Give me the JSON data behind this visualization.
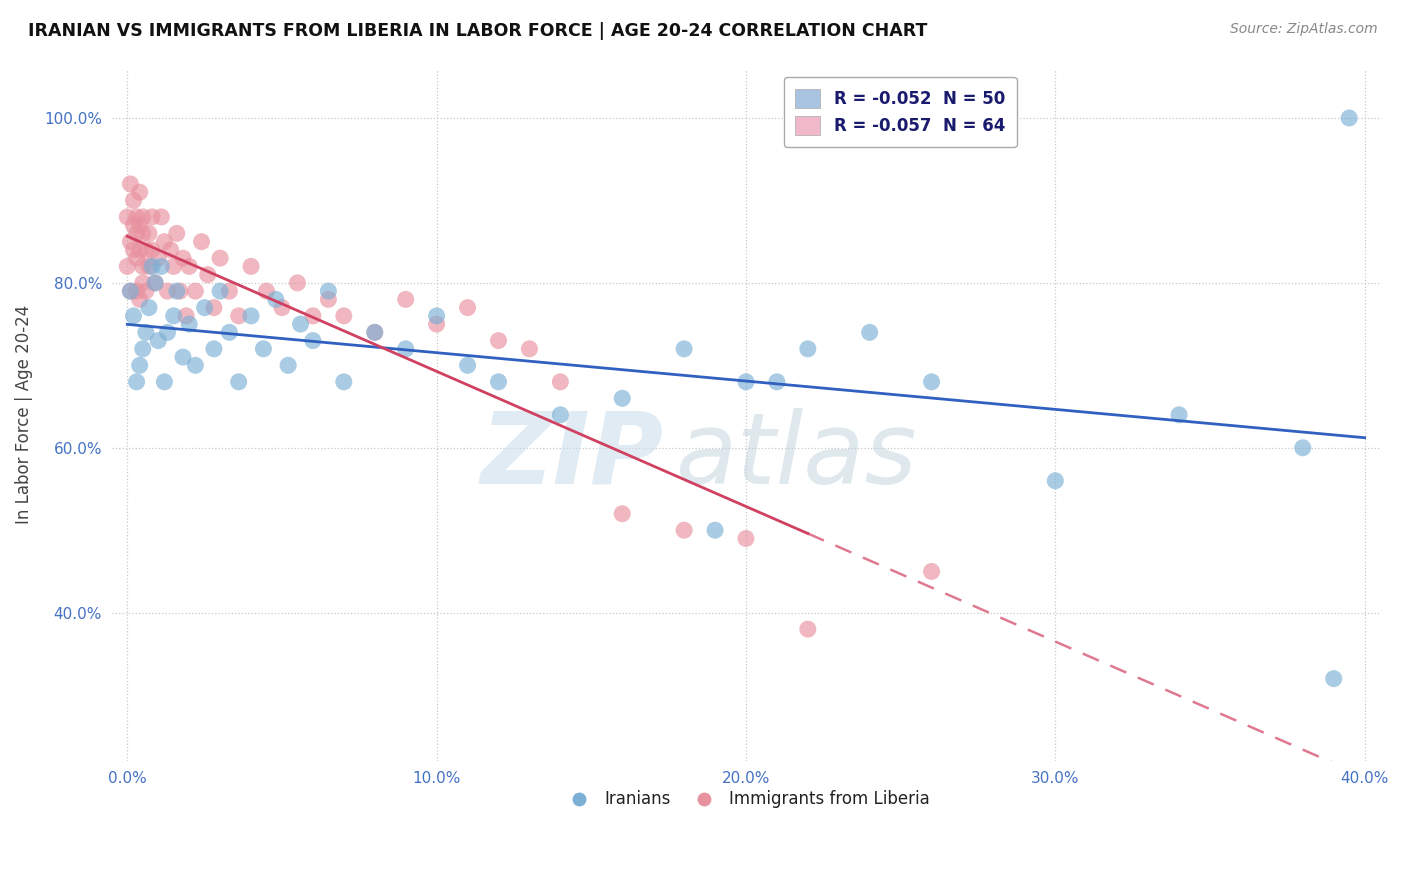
{
  "title": "IRANIAN VS IMMIGRANTS FROM LIBERIA IN LABOR FORCE | AGE 20-24 CORRELATION CHART",
  "source": "Source: ZipAtlas.com",
  "ylabel": "In Labor Force | Age 20-24",
  "xlim": [
    -0.005,
    0.405
  ],
  "ylim": [
    0.22,
    1.06
  ],
  "xticks": [
    0.0,
    0.1,
    0.2,
    0.3,
    0.4
  ],
  "yticks": [
    0.4,
    0.6,
    0.8,
    1.0
  ],
  "ytick_labels": [
    "40.0%",
    "60.0%",
    "80.0%",
    "100.0%"
  ],
  "xtick_labels": [
    "0.0%",
    "10.0%",
    "20.0%",
    "30.0%",
    "40.0%"
  ],
  "iranians_color": "#7bafd4",
  "liberia_color": "#e8919f",
  "iranians_trend_color": "#3060c0",
  "liberia_trend_color": "#d04060",
  "iranians_x": [
    0.001,
    0.005,
    0.008,
    0.002,
    0.003,
    0.006,
    0.009,
    0.004,
    0.007,
    0.01,
    0.012,
    0.015,
    0.018,
    0.011,
    0.013,
    0.016,
    0.02,
    0.022,
    0.025,
    0.028,
    0.03,
    0.033,
    0.036,
    0.04,
    0.044,
    0.048,
    0.052,
    0.056,
    0.06,
    0.065,
    0.07,
    0.08,
    0.09,
    0.1,
    0.11,
    0.12,
    0.14,
    0.16,
    0.18,
    0.2,
    0.22,
    0.24,
    0.26,
    0.3,
    0.34,
    0.38,
    0.19,
    0.21,
    0.39,
    0.395
  ],
  "iranians_y": [
    0.79,
    0.72,
    0.82,
    0.76,
    0.68,
    0.74,
    0.8,
    0.7,
    0.77,
    0.73,
    0.68,
    0.76,
    0.71,
    0.82,
    0.74,
    0.79,
    0.75,
    0.7,
    0.77,
    0.72,
    0.79,
    0.74,
    0.68,
    0.76,
    0.72,
    0.78,
    0.7,
    0.75,
    0.73,
    0.79,
    0.68,
    0.74,
    0.72,
    0.76,
    0.7,
    0.68,
    0.64,
    0.66,
    0.72,
    0.68,
    0.72,
    0.74,
    0.68,
    0.56,
    0.64,
    0.6,
    0.5,
    0.68,
    0.32,
    1.0
  ],
  "liberia_x": [
    0.0,
    0.0,
    0.001,
    0.001,
    0.001,
    0.002,
    0.002,
    0.002,
    0.003,
    0.003,
    0.003,
    0.003,
    0.004,
    0.004,
    0.004,
    0.004,
    0.005,
    0.005,
    0.005,
    0.005,
    0.006,
    0.006,
    0.007,
    0.007,
    0.008,
    0.008,
    0.009,
    0.01,
    0.011,
    0.012,
    0.013,
    0.014,
    0.015,
    0.016,
    0.017,
    0.018,
    0.019,
    0.02,
    0.022,
    0.024,
    0.026,
    0.028,
    0.03,
    0.033,
    0.036,
    0.04,
    0.045,
    0.05,
    0.055,
    0.06,
    0.065,
    0.07,
    0.08,
    0.09,
    0.1,
    0.11,
    0.12,
    0.13,
    0.14,
    0.16,
    0.18,
    0.2,
    0.22,
    0.26
  ],
  "liberia_y": [
    0.82,
    0.88,
    0.85,
    0.92,
    0.79,
    0.87,
    0.9,
    0.84,
    0.88,
    0.83,
    0.79,
    0.86,
    0.91,
    0.84,
    0.78,
    0.87,
    0.82,
    0.88,
    0.8,
    0.86,
    0.84,
    0.79,
    0.86,
    0.82,
    0.88,
    0.84,
    0.8,
    0.83,
    0.88,
    0.85,
    0.79,
    0.84,
    0.82,
    0.86,
    0.79,
    0.83,
    0.76,
    0.82,
    0.79,
    0.85,
    0.81,
    0.77,
    0.83,
    0.79,
    0.76,
    0.82,
    0.79,
    0.77,
    0.8,
    0.76,
    0.78,
    0.76,
    0.74,
    0.78,
    0.75,
    0.77,
    0.73,
    0.72,
    0.68,
    0.52,
    0.5,
    0.49,
    0.38,
    0.45
  ],
  "legend_entries": [
    {
      "label": "R = -0.052  N = 50",
      "facecolor": "#a8c4e0"
    },
    {
      "label": "R = -0.057  N = 64",
      "facecolor": "#f0b8c8"
    }
  ]
}
